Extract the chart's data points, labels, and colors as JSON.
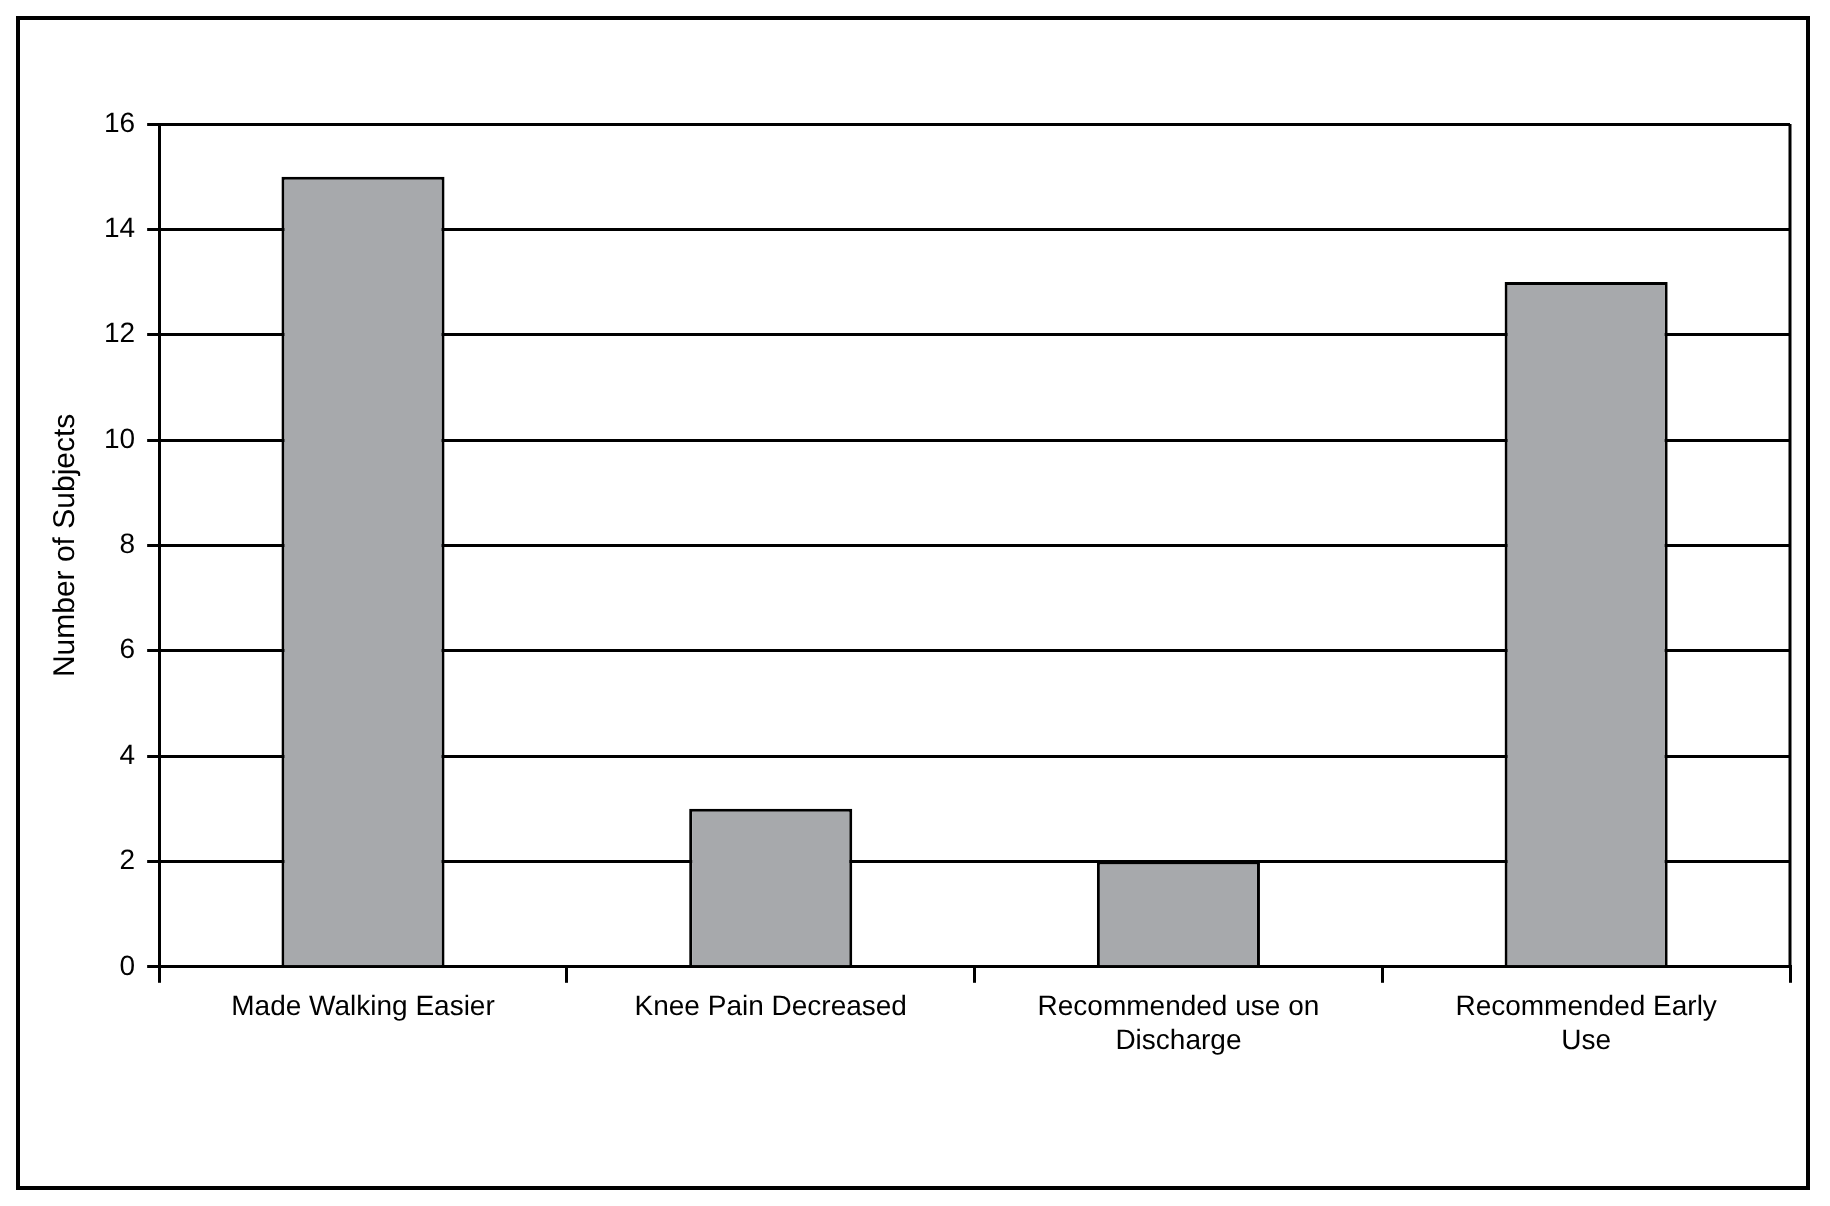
{
  "chart_data": {
    "type": "bar",
    "ylabel": "Number of Subjects",
    "categories": [
      "Made Walking Easier",
      "Knee Pain Decreased",
      "Recommended use on Discharge",
      "Recommended Early Use"
    ],
    "values": [
      15,
      3,
      2,
      13
    ],
    "color": "#a7a9ac",
    "ylim": [
      0,
      16
    ],
    "yticks": [
      0,
      2,
      4,
      6,
      8,
      10,
      12,
      14,
      16
    ],
    "grid": "y",
    "legend": false
  }
}
